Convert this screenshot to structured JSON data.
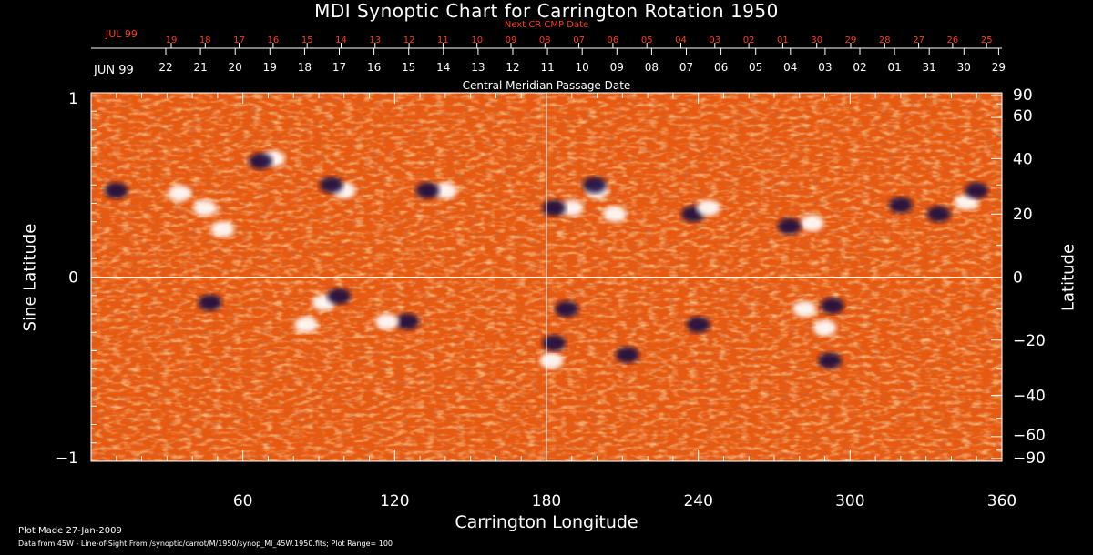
{
  "chart_data": {
    "type": "heatmap",
    "title": "MDI Synoptic Chart for Carrington Rotation 1950",
    "xlabel": "Carrington Longitude",
    "ylabel_left": "Sine Latitude",
    "ylabel_right": "Latitude",
    "xlim": [
      0,
      360
    ],
    "ylim_sine": [
      -1,
      1
    ],
    "x_ticks": [
      "60",
      "120",
      "180",
      "240",
      "300",
      "360"
    ],
    "x_tick_values": [
      60,
      120,
      180,
      240,
      300,
      360
    ],
    "y_left_ticks": [
      {
        "value": 1,
        "label": "1"
      },
      {
        "value": 0,
        "label": "0"
      },
      {
        "value": -1,
        "label": "−1"
      }
    ],
    "y_right_ticks": [
      {
        "value": 90,
        "label": "90"
      },
      {
        "value": 60,
        "label": "60"
      },
      {
        "value": 40,
        "label": "40"
      },
      {
        "value": 20,
        "label": "20"
      },
      {
        "value": 0,
        "label": "0"
      },
      {
        "value": -20,
        "label": "−20"
      },
      {
        "value": -40,
        "label": "−40"
      },
      {
        "value": -60,
        "label": "−60"
      },
      {
        "value": -90,
        "label": "−90"
      }
    ],
    "grid": "lines at longitude 180 and latitude 0",
    "cmp_axis_label": "Central Meridian Passage Date",
    "cmp_month_label": "JUN 99",
    "cmp_dates": [
      "22",
      "21",
      "20",
      "19",
      "18",
      "17",
      "16",
      "15",
      "14",
      "13",
      "12",
      "11",
      "10",
      "09",
      "08",
      "07",
      "06",
      "05",
      "04",
      "03",
      "02",
      "01",
      "31",
      "30",
      "29"
    ],
    "next_cr_label": "Next CR CMP Date",
    "next_cr_month_label": "JUL 99",
    "next_cr_dates": [
      "19",
      "18",
      "17",
      "16",
      "15",
      "14",
      "13",
      "12",
      "11",
      "10",
      "09",
      "08",
      "07",
      "06",
      "05",
      "04",
      "03",
      "02",
      "01",
      "30",
      "29",
      "28",
      "27",
      "26",
      "25"
    ],
    "colors": {
      "background": "#e85a10",
      "positive": "#ffffff",
      "negative": "#1a1040",
      "axis": "#ffffff",
      "accent": "#ff3b1a"
    },
    "active_regions": [
      {
        "lon": 45,
        "lat": 22,
        "polarity": "positive"
      },
      {
        "lon": 52,
        "lat": 15,
        "polarity": "positive"
      },
      {
        "lon": 35,
        "lat": 27,
        "polarity": "positive"
      },
      {
        "lon": 10,
        "lat": 28,
        "polarity": "negative"
      },
      {
        "lon": 72,
        "lat": 40,
        "polarity": "positive"
      },
      {
        "lon": 67,
        "lat": 39,
        "polarity": "negative"
      },
      {
        "lon": 100,
        "lat": 28,
        "polarity": "positive"
      },
      {
        "lon": 95,
        "lat": 30,
        "polarity": "negative"
      },
      {
        "lon": 140,
        "lat": 28,
        "polarity": "positive"
      },
      {
        "lon": 133,
        "lat": 28,
        "polarity": "negative"
      },
      {
        "lon": 200,
        "lat": 28,
        "polarity": "positive"
      },
      {
        "lon": 207,
        "lat": 20,
        "polarity": "positive"
      },
      {
        "lon": 190,
        "lat": 22,
        "polarity": "positive"
      },
      {
        "lon": 183,
        "lat": 22,
        "polarity": "negative"
      },
      {
        "lon": 199,
        "lat": 30,
        "polarity": "negative"
      },
      {
        "lon": 238,
        "lat": 20,
        "polarity": "negative"
      },
      {
        "lon": 244,
        "lat": 22,
        "polarity": "positive"
      },
      {
        "lon": 285,
        "lat": 17,
        "polarity": "positive"
      },
      {
        "lon": 276,
        "lat": 16,
        "polarity": "negative"
      },
      {
        "lon": 320,
        "lat": 23,
        "polarity": "negative"
      },
      {
        "lon": 335,
        "lat": 20,
        "polarity": "negative"
      },
      {
        "lon": 346,
        "lat": 24,
        "polarity": "positive"
      },
      {
        "lon": 350,
        "lat": 28,
        "polarity": "negative"
      },
      {
        "lon": 47,
        "lat": -8,
        "polarity": "negative"
      },
      {
        "lon": 92,
        "lat": -8,
        "polarity": "positive"
      },
      {
        "lon": 98,
        "lat": -6,
        "polarity": "negative"
      },
      {
        "lon": 85,
        "lat": -15,
        "polarity": "positive"
      },
      {
        "lon": 125,
        "lat": -14,
        "polarity": "negative"
      },
      {
        "lon": 117,
        "lat": -14,
        "polarity": "positive"
      },
      {
        "lon": 182,
        "lat": -27,
        "polarity": "positive"
      },
      {
        "lon": 188,
        "lat": -10,
        "polarity": "negative"
      },
      {
        "lon": 183,
        "lat": -21,
        "polarity": "negative"
      },
      {
        "lon": 212,
        "lat": -25,
        "polarity": "negative"
      },
      {
        "lon": 240,
        "lat": -15,
        "polarity": "negative"
      },
      {
        "lon": 282,
        "lat": -10,
        "polarity": "positive"
      },
      {
        "lon": 293,
        "lat": -9,
        "polarity": "negative"
      },
      {
        "lon": 290,
        "lat": -16,
        "polarity": "positive"
      },
      {
        "lon": 292,
        "lat": -27,
        "polarity": "negative"
      }
    ]
  },
  "footer": {
    "plot_made": "Plot Made 27-Jan-2009",
    "source": "Data from 45W - Line-of-Sight From /synoptic/carrot/M/1950/synop_Ml_45W.1950.fits; Plot Range= 100"
  }
}
